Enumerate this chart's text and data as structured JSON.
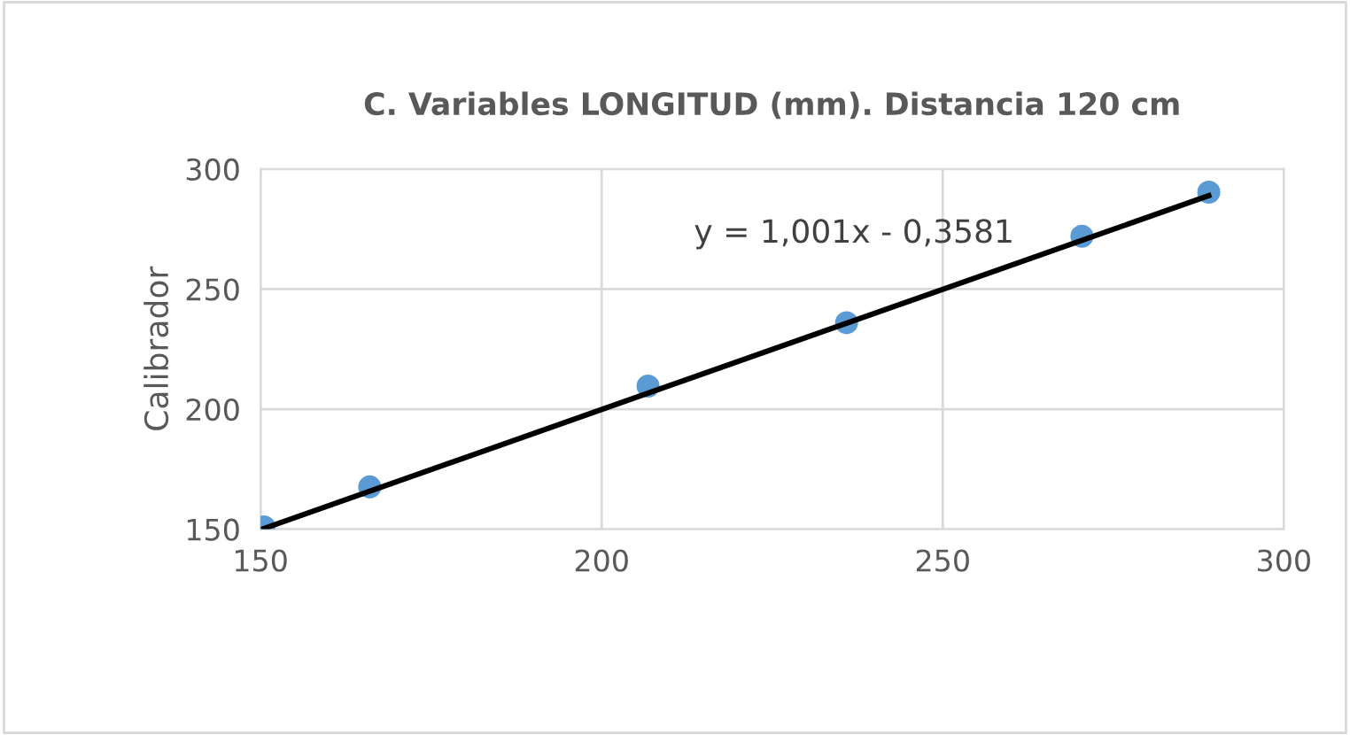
{
  "chart_data": {
    "type": "scatter",
    "title": "C. Variables LONGITUD (mm). Distancia 120 cm",
    "ylabel": "Calibrador",
    "series": [
      {
        "color": "#5b9bd5",
        "marker": "circle",
        "x": [
          150.5,
          166,
          206.8,
          235.9,
          270.4,
          289
        ],
        "values": [
          151,
          167.6,
          209.6,
          236,
          272,
          290.4
        ]
      },
      {
        "type": "line",
        "color": "#000000",
        "x": [
          150.5,
          289
        ],
        "values": [
          150.3,
          288.9
        ]
      }
    ],
    "annotations": [
      "y = 1,001x - 0,3581"
    ],
    "xlim": [
      150,
      300
    ],
    "xticks": [
      150,
      200,
      250,
      300
    ],
    "ylim": [
      150,
      300
    ],
    "yticks": [
      150,
      200,
      250,
      300
    ],
    "grid": true
  }
}
